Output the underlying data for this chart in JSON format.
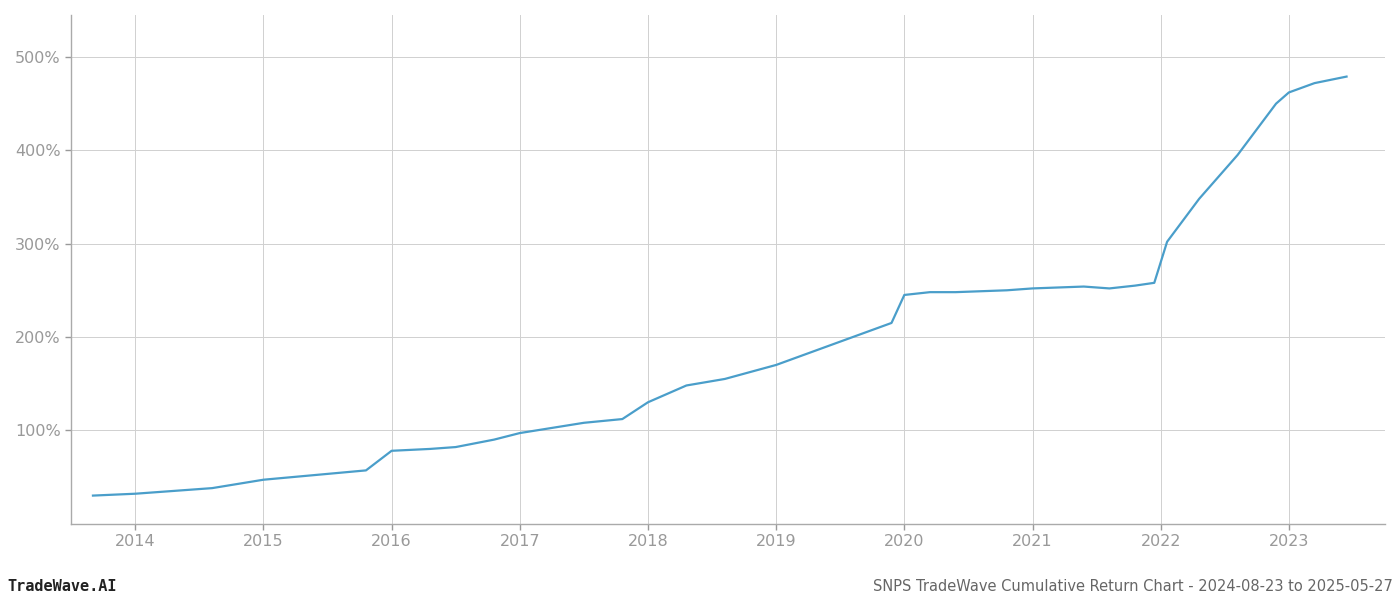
{
  "title": "SNPS TradeWave Cumulative Return Chart - 2024-08-23 to 2025-05-27",
  "watermark": "TradeWave.AI",
  "line_color": "#4a9eca",
  "background_color": "#ffffff",
  "grid_color": "#d0d0d0",
  "x_years": [
    2014,
    2015,
    2016,
    2017,
    2018,
    2019,
    2020,
    2021,
    2022,
    2023
  ],
  "x_values": [
    2013.67,
    2014.0,
    2014.3,
    2014.6,
    2015.0,
    2015.4,
    2015.8,
    2016.0,
    2016.3,
    2016.5,
    2016.8,
    2017.0,
    2017.5,
    2017.8,
    2018.0,
    2018.3,
    2018.6,
    2019.0,
    2019.3,
    2019.6,
    2019.9,
    2020.0,
    2020.2,
    2020.4,
    2020.6,
    2020.8,
    2021.0,
    2021.2,
    2021.4,
    2021.6,
    2021.8,
    2021.95,
    2022.05,
    2022.3,
    2022.6,
    2022.9,
    2023.0,
    2023.2,
    2023.45
  ],
  "y_values": [
    30,
    32,
    35,
    38,
    47,
    52,
    57,
    78,
    80,
    82,
    90,
    97,
    108,
    112,
    130,
    148,
    155,
    170,
    185,
    200,
    215,
    245,
    248,
    248,
    249,
    250,
    252,
    253,
    254,
    252,
    255,
    258,
    302,
    348,
    395,
    450,
    462,
    472,
    479
  ],
  "ylim": [
    0,
    545
  ],
  "yticks": [
    100,
    200,
    300,
    400,
    500
  ],
  "ytick_labels": [
    "100%",
    "200%",
    "300%",
    "400%",
    "500%"
  ],
  "xlim": [
    2013.5,
    2023.75
  ],
  "axis_color": "#aaaaaa",
  "tick_color": "#999999",
  "title_color": "#666666",
  "watermark_color": "#222222",
  "line_width": 1.6,
  "title_fontsize": 10.5,
  "watermark_fontsize": 11,
  "tick_fontsize": 11.5
}
